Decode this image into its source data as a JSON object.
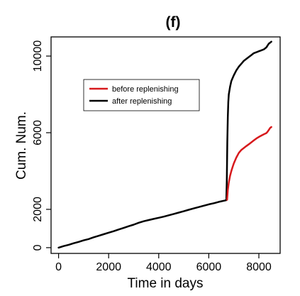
{
  "chart_data": {
    "type": "line",
    "title": "(f)",
    "xlabel": "Time in days",
    "ylabel": "Cum. Num.",
    "xlim": [
      -300,
      8850
    ],
    "ylim": [
      -300,
      11000
    ],
    "xticks": [
      0,
      2000,
      4000,
      6000,
      8000
    ],
    "yticks": [
      0,
      2000,
      6000,
      10000
    ],
    "legend_position": "upper-left",
    "grid": false,
    "series": [
      {
        "name": "before replenishing",
        "color": "#d7191c",
        "x": [
          6730,
          6760,
          6800,
          6850,
          6900,
          6950,
          7000,
          7100,
          7200,
          7300,
          7400,
          7500,
          7600,
          7700,
          7800,
          7900,
          8000,
          8100,
          8200,
          8300,
          8350,
          8400,
          8450,
          8500
        ],
        "y": [
          2500,
          3000,
          3400,
          3750,
          4000,
          4200,
          4400,
          4700,
          4950,
          5100,
          5200,
          5300,
          5400,
          5500,
          5600,
          5700,
          5780,
          5850,
          5920,
          5980,
          6050,
          6150,
          6250,
          6300
        ]
      },
      {
        "name": "after replenishing",
        "color": "#000000",
        "x": [
          0,
          200,
          400,
          600,
          800,
          1000,
          1200,
          1400,
          1600,
          1800,
          2000,
          2200,
          2400,
          2600,
          2800,
          3000,
          3200,
          3400,
          3600,
          3800,
          4000,
          4200,
          4400,
          4600,
          4800,
          5000,
          5200,
          5400,
          5600,
          5800,
          6000,
          6200,
          6400,
          6600,
          6700,
          6720,
          6740,
          6760,
          6780,
          6800,
          6850,
          6900,
          7000,
          7100,
          7200,
          7300,
          7400,
          7500,
          7600,
          7700,
          7800,
          7900,
          8000,
          8100,
          8200,
          8300,
          8350,
          8400,
          8450,
          8500
        ],
        "y": [
          0,
          80,
          150,
          230,
          300,
          380,
          450,
          540,
          620,
          700,
          780,
          860,
          950,
          1030,
          1120,
          1200,
          1300,
          1380,
          1440,
          1500,
          1560,
          1620,
          1690,
          1760,
          1830,
          1900,
          1980,
          2050,
          2120,
          2190,
          2260,
          2320,
          2390,
          2450,
          2480,
          3500,
          5500,
          6800,
          7600,
          8000,
          8400,
          8700,
          9000,
          9250,
          9450,
          9600,
          9750,
          9850,
          9950,
          10050,
          10150,
          10200,
          10250,
          10300,
          10350,
          10450,
          10550,
          10650,
          10700,
          10750
        ]
      }
    ]
  }
}
